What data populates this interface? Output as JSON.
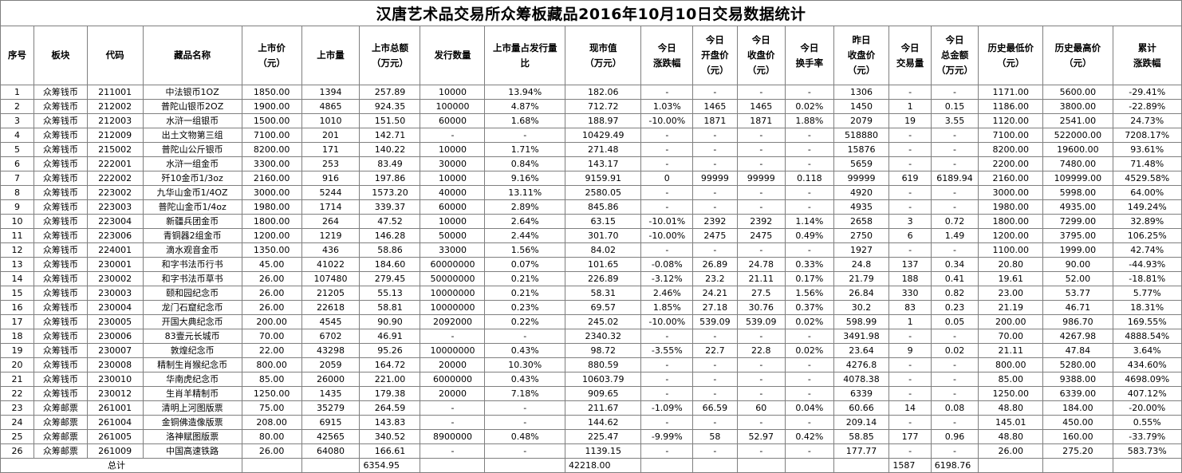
{
  "title": "汉唐艺术品交易所众筹板藏品2016年10月10日交易数据统计",
  "columns": [
    {
      "label": "序号"
    },
    {
      "label": "板块"
    },
    {
      "label": "代码"
    },
    {
      "label": "藏品名称"
    },
    {
      "label": "上市价\n（元）"
    },
    {
      "label": "上市量"
    },
    {
      "label": "上市总额\n（万元）"
    },
    {
      "label": "发行数量"
    },
    {
      "label": "上市量占发行量\n比"
    },
    {
      "label": "现市值\n（万元）"
    },
    {
      "label": "今日\n涨跌幅"
    },
    {
      "label": "今日\n开盘价\n（元）"
    },
    {
      "label": "今日\n收盘价\n（元）"
    },
    {
      "label": "今日\n换手率"
    },
    {
      "label": "昨日\n收盘价\n（元）"
    },
    {
      "label": "今日\n交易量"
    },
    {
      "label": "今日\n总金额\n（万元）"
    },
    {
      "label": "历史最低价\n（元）"
    },
    {
      "label": "历史最高价\n（元）"
    },
    {
      "label": "累计\n涨跌幅"
    }
  ],
  "rows": [
    [
      "1",
      "众筹钱币",
      "211001",
      "中法银币1OZ",
      "1850.00",
      "1394",
      "257.89",
      "10000",
      "13.94%",
      "182.06",
      "-",
      "-",
      "-",
      "-",
      "1306",
      "-",
      "-",
      "1171.00",
      "5600.00",
      "-29.41%"
    ],
    [
      "2",
      "众筹钱币",
      "212002",
      "普陀山银币2OZ",
      "1900.00",
      "4865",
      "924.35",
      "100000",
      "4.87%",
      "712.72",
      "1.03%",
      "1465",
      "1465",
      "0.02%",
      "1450",
      "1",
      "0.15",
      "1186.00",
      "3800.00",
      "-22.89%"
    ],
    [
      "3",
      "众筹钱币",
      "212003",
      "水浒一组银币",
      "1500.00",
      "1010",
      "151.50",
      "60000",
      "1.68%",
      "188.97",
      "-10.00%",
      "1871",
      "1871",
      "1.88%",
      "2079",
      "19",
      "3.55",
      "1120.00",
      "2541.00",
      "24.73%"
    ],
    [
      "4",
      "众筹钱币",
      "212009",
      "出土文物第三组",
      "7100.00",
      "201",
      "142.71",
      "-",
      "-",
      "10429.49",
      "-",
      "-",
      "-",
      "-",
      "518880",
      "-",
      "-",
      "7100.00",
      "522000.00",
      "7208.17%"
    ],
    [
      "5",
      "众筹钱币",
      "215002",
      "普陀山公斤银币",
      "8200.00",
      "171",
      "140.22",
      "10000",
      "1.71%",
      "271.48",
      "-",
      "-",
      "-",
      "-",
      "15876",
      "-",
      "-",
      "8200.00",
      "19600.00",
      "93.61%"
    ],
    [
      "6",
      "众筹钱币",
      "222001",
      "水浒一组金币",
      "3300.00",
      "253",
      "83.49",
      "30000",
      "0.84%",
      "143.17",
      "-",
      "-",
      "-",
      "-",
      "5659",
      "-",
      "-",
      "2200.00",
      "7480.00",
      "71.48%"
    ],
    [
      "7",
      "众筹钱币",
      "222002",
      "歼10金币1/3oz",
      "2160.00",
      "916",
      "197.86",
      "10000",
      "9.16%",
      "9159.91",
      "0",
      "99999",
      "99999",
      "0.118",
      "99999",
      "619",
      "6189.94",
      "2160.00",
      "109999.00",
      "4529.58%"
    ],
    [
      "8",
      "众筹钱币",
      "223002",
      "九华山金币1/4OZ",
      "3000.00",
      "5244",
      "1573.20",
      "40000",
      "13.11%",
      "2580.05",
      "-",
      "-",
      "-",
      "-",
      "4920",
      "-",
      "-",
      "3000.00",
      "5998.00",
      "64.00%"
    ],
    [
      "9",
      "众筹钱币",
      "223003",
      "普陀山金币1/4oz",
      "1980.00",
      "1714",
      "339.37",
      "60000",
      "2.89%",
      "845.86",
      "-",
      "-",
      "-",
      "-",
      "4935",
      "-",
      "-",
      "1980.00",
      "4935.00",
      "149.24%"
    ],
    [
      "10",
      "众筹钱币",
      "223004",
      "新疆兵团金币",
      "1800.00",
      "264",
      "47.52",
      "10000",
      "2.64%",
      "63.15",
      "-10.01%",
      "2392",
      "2392",
      "1.14%",
      "2658",
      "3",
      "0.72",
      "1800.00",
      "7299.00",
      "32.89%"
    ],
    [
      "11",
      "众筹钱币",
      "223006",
      "青铜器2组金币",
      "1200.00",
      "1219",
      "146.28",
      "50000",
      "2.44%",
      "301.70",
      "-10.00%",
      "2475",
      "2475",
      "0.49%",
      "2750",
      "6",
      "1.49",
      "1200.00",
      "3795.00",
      "106.25%"
    ],
    [
      "12",
      "众筹钱币",
      "224001",
      "滴水观音金币",
      "1350.00",
      "436",
      "58.86",
      "33000",
      "1.56%",
      "84.02",
      "-",
      "-",
      "-",
      "-",
      "1927",
      "-",
      "-",
      "1100.00",
      "1999.00",
      "42.74%"
    ],
    [
      "13",
      "众筹钱币",
      "230001",
      "和字书法币行书",
      "45.00",
      "41022",
      "184.60",
      "60000000",
      "0.07%",
      "101.65",
      "-0.08%",
      "26.89",
      "24.78",
      "0.33%",
      "24.8",
      "137",
      "0.34",
      "20.80",
      "90.00",
      "-44.93%"
    ],
    [
      "14",
      "众筹钱币",
      "230002",
      "和字书法币草书",
      "26.00",
      "107480",
      "279.45",
      "50000000",
      "0.21%",
      "226.89",
      "-3.12%",
      "23.2",
      "21.11",
      "0.17%",
      "21.79",
      "188",
      "0.41",
      "19.61",
      "52.00",
      "-18.81%"
    ],
    [
      "15",
      "众筹钱币",
      "230003",
      "颐和园纪念币",
      "26.00",
      "21205",
      "55.13",
      "10000000",
      "0.21%",
      "58.31",
      "2.46%",
      "24.21",
      "27.5",
      "1.56%",
      "26.84",
      "330",
      "0.82",
      "23.00",
      "53.77",
      "5.77%"
    ],
    [
      "16",
      "众筹钱币",
      "230004",
      "龙门石窟纪念币",
      "26.00",
      "22618",
      "58.81",
      "10000000",
      "0.23%",
      "69.57",
      "1.85%",
      "27.18",
      "30.76",
      "0.37%",
      "30.2",
      "83",
      "0.23",
      "21.19",
      "46.71",
      "18.31%"
    ],
    [
      "17",
      "众筹钱币",
      "230005",
      "开国大典纪念币",
      "200.00",
      "4545",
      "90.90",
      "2092000",
      "0.22%",
      "245.02",
      "-10.00%",
      "539.09",
      "539.09",
      "0.02%",
      "598.99",
      "1",
      "0.05",
      "200.00",
      "986.70",
      "169.55%"
    ],
    [
      "18",
      "众筹钱币",
      "230006",
      "83壹元长城币",
      "70.00",
      "6702",
      "46.91",
      "-",
      "-",
      "2340.32",
      "-",
      "-",
      "-",
      "-",
      "3491.98",
      "-",
      "-",
      "70.00",
      "4267.98",
      "4888.54%"
    ],
    [
      "19",
      "众筹钱币",
      "230007",
      "敦煌纪念币",
      "22.00",
      "43298",
      "95.26",
      "10000000",
      "0.43%",
      "98.72",
      "-3.55%",
      "22.7",
      "22.8",
      "0.02%",
      "23.64",
      "9",
      "0.02",
      "21.11",
      "47.84",
      "3.64%"
    ],
    [
      "20",
      "众筹钱币",
      "230008",
      "精制生肖猴纪念币",
      "800.00",
      "2059",
      "164.72",
      "20000",
      "10.30%",
      "880.59",
      "-",
      "-",
      "-",
      "-",
      "4276.8",
      "-",
      "-",
      "800.00",
      "5280.00",
      "434.60%"
    ],
    [
      "21",
      "众筹钱币",
      "230010",
      "华南虎纪念币",
      "85.00",
      "26000",
      "221.00",
      "6000000",
      "0.43%",
      "10603.79",
      "-",
      "-",
      "-",
      "-",
      "4078.38",
      "-",
      "-",
      "85.00",
      "9388.00",
      "4698.09%"
    ],
    [
      "22",
      "众筹钱币",
      "230012",
      "生肖羊精制币",
      "1250.00",
      "1435",
      "179.38",
      "20000",
      "7.18%",
      "909.65",
      "-",
      "-",
      "-",
      "-",
      "6339",
      "-",
      "-",
      "1250.00",
      "6339.00",
      "407.12%"
    ],
    [
      "23",
      "众筹邮票",
      "261001",
      "清明上河图版票",
      "75.00",
      "35279",
      "264.59",
      "-",
      "-",
      "211.67",
      "-1.09%",
      "66.59",
      "60",
      "0.04%",
      "60.66",
      "14",
      "0.08",
      "48.80",
      "184.00",
      "-20.00%"
    ],
    [
      "24",
      "众筹邮票",
      "261004",
      "金铜佛造像版票",
      "208.00",
      "6915",
      "143.83",
      "-",
      "-",
      "144.62",
      "-",
      "-",
      "-",
      "-",
      "209.14",
      "-",
      "-",
      "145.01",
      "450.00",
      "0.55%"
    ],
    [
      "25",
      "众筹邮票",
      "261005",
      "洛神赋图版票",
      "80.00",
      "42565",
      "340.52",
      "8900000",
      "0.48%",
      "225.47",
      "-9.99%",
      "58",
      "52.97",
      "0.42%",
      "58.85",
      "177",
      "0.96",
      "48.80",
      "160.00",
      "-33.79%"
    ],
    [
      "26",
      "众筹邮票",
      "261009",
      "中国高速铁路",
      "26.00",
      "64080",
      "166.61",
      "-",
      "-",
      "1139.15",
      "-",
      "-",
      "-",
      "-",
      "177.77",
      "-",
      "-",
      "26.00",
      "275.20",
      "583.73%"
    ]
  ],
  "totals": {
    "label": "总计",
    "listing_total": "6354.95",
    "market_value": "42218.00",
    "volume": "1587",
    "amount": "6198.76"
  }
}
